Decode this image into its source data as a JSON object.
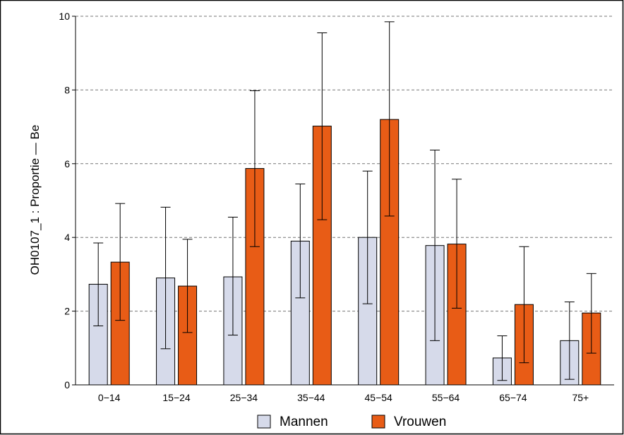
{
  "chart_data": {
    "type": "bar",
    "title": "",
    "xlabel": "",
    "ylabel": "OH0107_1 :  Proportie   —   Be",
    "ylim": [
      0,
      10
    ],
    "yticks": [
      0,
      2,
      4,
      6,
      8,
      10
    ],
    "grid": "horizontal dashed",
    "categories": [
      "0−14",
      "15−24",
      "25−34",
      "35−44",
      "45−54",
      "55−64",
      "65−74",
      "75+"
    ],
    "series": [
      {
        "name": "Mannen",
        "color": "#d6daea",
        "values": [
          2.73,
          2.9,
          2.93,
          3.9,
          4.0,
          3.78,
          0.73,
          1.2
        ],
        "lower": [
          1.6,
          0.98,
          1.35,
          2.36,
          2.2,
          1.2,
          0.12,
          0.15
        ],
        "upper": [
          3.85,
          4.82,
          4.55,
          5.45,
          5.8,
          6.37,
          1.33,
          2.25
        ]
      },
      {
        "name": "Vrouwen",
        "color": "#e85c16",
        "values": [
          3.33,
          2.68,
          5.87,
          7.02,
          7.2,
          3.82,
          2.18,
          1.95
        ],
        "lower": [
          1.75,
          1.42,
          3.75,
          4.48,
          4.58,
          2.08,
          0.6,
          0.86
        ],
        "upper": [
          4.92,
          3.95,
          7.98,
          9.55,
          9.85,
          5.58,
          3.75,
          3.02
        ]
      }
    ],
    "legend_position": "bottom"
  }
}
